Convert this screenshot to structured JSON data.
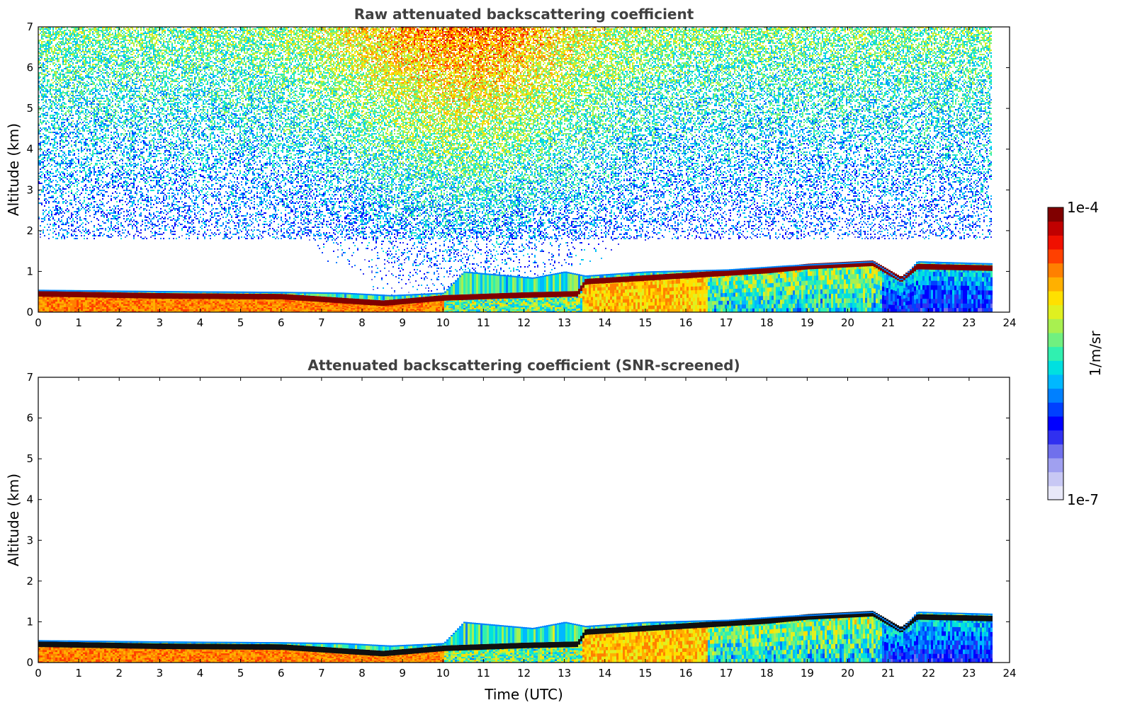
{
  "chart_data": [
    {
      "type": "heatmap",
      "title": "Raw attenuated backscattering coefficient",
      "xlabel": "",
      "ylabel": "Altitude (km)",
      "xlim": [
        0,
        24
      ],
      "ylim": [
        0,
        7
      ],
      "xticks": [
        "0",
        "1",
        "2",
        "3",
        "4",
        "5",
        "6",
        "7",
        "8",
        "9",
        "10",
        "11",
        "12",
        "13",
        "14",
        "15",
        "16",
        "17",
        "18",
        "19",
        "20",
        "21",
        "22",
        "23",
        "24"
      ],
      "yticks": [
        "0",
        "1",
        "2",
        "3",
        "4",
        "5",
        "6",
        "7"
      ],
      "screened": false,
      "layer_top_km": [
        [
          0,
          0.55
        ],
        [
          3,
          0.52
        ],
        [
          6,
          0.5
        ],
        [
          7.5,
          0.48
        ],
        [
          8.7,
          0.42
        ],
        [
          10,
          0.48
        ],
        [
          10.5,
          1.0
        ],
        [
          12.2,
          0.85
        ],
        [
          13.0,
          1.0
        ],
        [
          13.5,
          0.9
        ],
        [
          15,
          1.0
        ],
        [
          17,
          1.05
        ],
        [
          18.5,
          1.15
        ],
        [
          20.6,
          1.25
        ],
        [
          21.3,
          0.8
        ],
        [
          21.7,
          1.25
        ],
        [
          23.55,
          1.2
        ]
      ],
      "dense_band_km": [
        [
          0,
          0.45
        ],
        [
          3,
          0.4
        ],
        [
          6,
          0.38
        ],
        [
          8.5,
          0.22
        ],
        [
          10,
          0.35
        ],
        [
          12,
          0.42
        ],
        [
          13.3,
          0.45
        ],
        [
          13.5,
          0.75
        ],
        [
          16,
          0.9
        ],
        [
          18,
          1.02
        ],
        [
          19,
          1.12
        ],
        [
          20.6,
          1.2
        ],
        [
          21.3,
          0.8
        ],
        [
          21.7,
          1.12
        ],
        [
          23.55,
          1.08
        ]
      ],
      "data_end_hour": 23.55
    },
    {
      "type": "heatmap",
      "title": "Attenuated backscattering coefficient (SNR-screened)",
      "xlabel": "Time (UTC)",
      "ylabel": "Altitude (km)",
      "xlim": [
        0,
        24
      ],
      "ylim": [
        0,
        7
      ],
      "xticks": [
        "0",
        "1",
        "2",
        "3",
        "4",
        "5",
        "6",
        "7",
        "8",
        "9",
        "10",
        "11",
        "12",
        "13",
        "14",
        "15",
        "16",
        "17",
        "18",
        "19",
        "20",
        "21",
        "22",
        "23",
        "24"
      ],
      "yticks": [
        "0",
        "1",
        "2",
        "3",
        "4",
        "5",
        "6",
        "7"
      ],
      "screened": true,
      "layer_top_km": [
        [
          0,
          0.55
        ],
        [
          3,
          0.52
        ],
        [
          6,
          0.5
        ],
        [
          7.5,
          0.48
        ],
        [
          8.7,
          0.42
        ],
        [
          10,
          0.48
        ],
        [
          10.5,
          1.0
        ],
        [
          12.2,
          0.85
        ],
        [
          13.0,
          1.0
        ],
        [
          13.5,
          0.9
        ],
        [
          15,
          1.0
        ],
        [
          17,
          1.05
        ],
        [
          18.5,
          1.15
        ],
        [
          20.6,
          1.25
        ],
        [
          21.3,
          0.8
        ],
        [
          21.7,
          1.25
        ],
        [
          23.55,
          1.2
        ]
      ],
      "dense_band_km": [
        [
          0,
          0.45
        ],
        [
          3,
          0.4
        ],
        [
          6,
          0.38
        ],
        [
          8.5,
          0.22
        ],
        [
          10,
          0.35
        ],
        [
          12,
          0.42
        ],
        [
          13.3,
          0.45
        ],
        [
          13.5,
          0.75
        ],
        [
          16,
          0.9
        ],
        [
          18,
          1.02
        ],
        [
          19,
          1.12
        ],
        [
          20.6,
          1.2
        ],
        [
          21.3,
          0.8
        ],
        [
          21.7,
          1.12
        ],
        [
          23.55,
          1.08
        ]
      ],
      "data_end_hour": 23.55
    }
  ],
  "colorbar": {
    "label": "1/m/sr",
    "max_label": "1e-4",
    "min_label": "1e-7",
    "scale": "log",
    "range": [
      1e-07,
      0.0001
    ],
    "colors": [
      "#e8e8f8",
      "#c8c8f4",
      "#a0a0f0",
      "#7070ec",
      "#3030f0",
      "#0000ff",
      "#0040ff",
      "#0080ff",
      "#00b8ff",
      "#00e0e0",
      "#30f0b0",
      "#70f080",
      "#a8f050",
      "#e0f020",
      "#ffe000",
      "#ffb000",
      "#ff8000",
      "#ff4000",
      "#f01000",
      "#c00000",
      "#800000"
    ]
  }
}
